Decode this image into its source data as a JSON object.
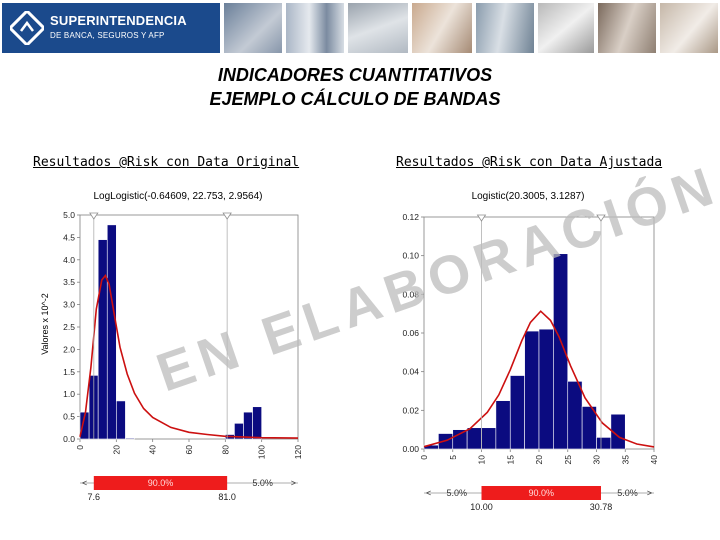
{
  "header": {
    "logo_line1": "SUPERINTENDENCIA",
    "logo_line2": "DE BANCA, SEGUROS Y AFP",
    "brand_color": "#1b4a8c"
  },
  "titles": {
    "line1": "INDICADORES CUANTITATIVOS",
    "line2": "EJEMPLO CÁLCULO DE BANDAS"
  },
  "watermark": {
    "text": "EN ELABORACIÓN",
    "color": "#c8c8c8"
  },
  "chart_data": [
    {
      "type": "bar",
      "heading": "Resultados @Risk con Data Original",
      "title": "LogLogistic(-0.64609, 22.753, 2.9564)",
      "ylabel": "Valores x 10^-2",
      "ylim": [
        0,
        5.0
      ],
      "xlim": [
        0,
        120
      ],
      "yticks": [
        "0.0",
        "0.5",
        "1.0",
        "1.5",
        "2.0",
        "2.5",
        "3.0",
        "3.5",
        "4.0",
        "4.5",
        "5.0"
      ],
      "xticks": [
        "0",
        "20",
        "40",
        "60",
        "80",
        "100",
        "120"
      ],
      "bin_width": 5,
      "bins": [
        {
          "x0": 0,
          "value": 0.6
        },
        {
          "x0": 5,
          "value": 1.42
        },
        {
          "x0": 10,
          "value": 4.45
        },
        {
          "x0": 15,
          "value": 4.78
        },
        {
          "x0": 20,
          "value": 0.85
        },
        {
          "x0": 25,
          "value": 0.02
        },
        {
          "x0": 80,
          "value": 0.1
        },
        {
          "x0": 85,
          "value": 0.35
        },
        {
          "x0": 90,
          "value": 0.6
        },
        {
          "x0": 95,
          "value": 0.72
        }
      ],
      "fit_curve": [
        [
          0,
          0.05
        ],
        [
          3,
          0.6
        ],
        [
          6,
          1.6
        ],
        [
          9,
          2.9
        ],
        [
          12,
          3.55
        ],
        [
          14,
          3.65
        ],
        [
          16,
          3.45
        ],
        [
          19,
          2.75
        ],
        [
          22,
          2.05
        ],
        [
          26,
          1.45
        ],
        [
          30,
          1.02
        ],
        [
          35,
          0.68
        ],
        [
          40,
          0.48
        ],
        [
          50,
          0.26
        ],
        [
          60,
          0.15
        ],
        [
          70,
          0.1
        ],
        [
          80,
          0.06
        ],
        [
          100,
          0.03
        ],
        [
          120,
          0.02
        ]
      ],
      "band": {
        "left_label": "<",
        "center": "90.0%",
        "right": "5.0%",
        "right_arrow": ">",
        "low": "7.6",
        "high": "81.0",
        "low_x": 7.6,
        "high_x": 81.0
      }
    },
    {
      "type": "bar",
      "heading": "Resultados @Risk con Data Ajustada",
      "title": "Logistic(20.3005, 3.1287)",
      "ylabel": "",
      "ylim": [
        0,
        0.12
      ],
      "xlim": [
        0,
        40
      ],
      "yticks": [
        "0.00",
        "0.02",
        "0.04",
        "0.06",
        "0.08",
        "0.10",
        "0.12"
      ],
      "xticks": [
        "0",
        "5",
        "10",
        "15",
        "20",
        "25",
        "30",
        "35",
        "40"
      ],
      "bin_width": 2.5,
      "bins": [
        {
          "x0": 0,
          "value": 0.002
        },
        {
          "x0": 2.5,
          "value": 0.008
        },
        {
          "x0": 5,
          "value": 0.01
        },
        {
          "x0": 7.5,
          "value": 0.011
        },
        {
          "x0": 10,
          "value": 0.011
        },
        {
          "x0": 12.5,
          "value": 0.025
        },
        {
          "x0": 15,
          "value": 0.038
        },
        {
          "x0": 17.5,
          "value": 0.061
        },
        {
          "x0": 20,
          "value": 0.062
        },
        {
          "x0": 22.5,
          "value": 0.101
        },
        {
          "x0": 25,
          "value": 0.035
        },
        {
          "x0": 27.5,
          "value": 0.022
        },
        {
          "x0": 30,
          "value": 0.006
        },
        {
          "x0": 32.5,
          "value": 0.018
        }
      ],
      "fit_curve": [
        [
          0,
          0.0012
        ],
        [
          4,
          0.0045
        ],
        [
          8,
          0.0105
        ],
        [
          11,
          0.019
        ],
        [
          13,
          0.028
        ],
        [
          15,
          0.041
        ],
        [
          17,
          0.056
        ],
        [
          18.5,
          0.0655
        ],
        [
          20.3,
          0.0713
        ],
        [
          22,
          0.0665
        ],
        [
          23.5,
          0.058
        ],
        [
          25.5,
          0.043
        ],
        [
          28,
          0.0265
        ],
        [
          31,
          0.0135
        ],
        [
          34,
          0.006
        ],
        [
          37,
          0.0026
        ],
        [
          40,
          0.0011
        ]
      ],
      "band": {
        "left_label": "<",
        "left": "5.0%",
        "center": "90.0%",
        "right": "5.0%",
        "right_arrow": ">",
        "low": "10.00",
        "high": "30.78",
        "low_x": 10.0,
        "high_x": 30.78
      }
    }
  ]
}
